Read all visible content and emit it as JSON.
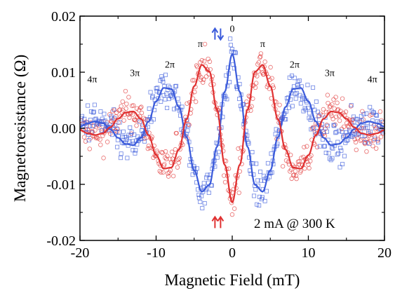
{
  "chart_data": {
    "type": "scatter",
    "xlabel": "Magnetic Field (mT)",
    "ylabel": "Magnetoresistance  (Ω)",
    "xlim": [
      -20,
      20
    ],
    "ylim": [
      -0.02,
      0.02
    ],
    "x_ticks": [
      -20,
      -10,
      0,
      10,
      20
    ],
    "x_tick_labels": [
      "-20",
      "-10",
      "0",
      "10",
      "20"
    ],
    "y_ticks": [
      -0.02,
      -0.01,
      0.0,
      0.01,
      0.02
    ],
    "y_tick_labels": [
      "-0.02",
      "-0.01",
      "0.00",
      "0.01",
      "0.02"
    ],
    "grid": false,
    "condition_label": "2 mA  @ 300 K",
    "series": [
      {
        "marker": "open-square",
        "color": "#3b5bdb",
        "fit_x": [
          -20,
          -19,
          -18,
          -17,
          -16,
          -15,
          -14,
          -13,
          -12,
          -11,
          -10,
          -9,
          -8,
          -7,
          -6,
          -5,
          -4,
          -3,
          -2,
          -1,
          0,
          1,
          2,
          3,
          4,
          5,
          6,
          7,
          8,
          9,
          10,
          11,
          12,
          13,
          14,
          15,
          16,
          17,
          18,
          19,
          20
        ],
        "fit_y": [
          0.0003,
          0.0009,
          0.0012,
          0.0009,
          -0.0002,
          -0.0017,
          -0.0028,
          -0.003,
          -0.0017,
          0.0012,
          0.0048,
          0.0072,
          0.007,
          0.0038,
          -0.0016,
          -0.0075,
          -0.0113,
          -0.0101,
          -0.0033,
          0.0065,
          0.0132,
          0.0065,
          -0.0033,
          -0.0101,
          -0.0113,
          -0.0075,
          -0.0016,
          0.0038,
          0.007,
          0.0072,
          0.0048,
          0.0012,
          -0.0017,
          -0.003,
          -0.0028,
          -0.0017,
          -0.0002,
          0.0009,
          0.0012,
          0.0009,
          0.0003
        ]
      },
      {
        "marker": "open-circle",
        "color": "#e03131",
        "fit_x": [
          -20,
          -19,
          -18,
          -17,
          -16,
          -15,
          -14,
          -13,
          -12,
          -11,
          -10,
          -9,
          -8,
          -7,
          -6,
          -5,
          -4,
          -3,
          -2,
          -1,
          0,
          1,
          2,
          3,
          4,
          5,
          6,
          7,
          8,
          9,
          10,
          11,
          12,
          13,
          14,
          15,
          16,
          17,
          18,
          19,
          20
        ],
        "fit_y": [
          -0.0003,
          -0.0009,
          -0.0012,
          -0.0009,
          0.0002,
          0.0017,
          0.0028,
          0.003,
          0.0017,
          -0.0012,
          -0.0048,
          -0.0072,
          -0.007,
          -0.0038,
          0.0016,
          0.0075,
          0.0113,
          0.0101,
          0.0033,
          -0.0065,
          -0.0132,
          -0.0065,
          0.0033,
          0.0101,
          0.0113,
          0.0075,
          0.0016,
          -0.0038,
          -0.007,
          -0.0072,
          -0.0048,
          -0.0012,
          0.0017,
          0.003,
          0.0028,
          0.0017,
          0.0002,
          -0.0009,
          -0.0012,
          -0.0009,
          -0.0003
        ]
      }
    ],
    "annotations": [
      {
        "text": "0",
        "x": 0,
        "y": 0.0172
      },
      {
        "text": "π",
        "x": -4.2,
        "y": 0.0145
      },
      {
        "text": "π",
        "x": 4.0,
        "y": 0.0145
      },
      {
        "text": "2π",
        "x": -8.2,
        "y": 0.0108
      },
      {
        "text": "2π",
        "x": 8.2,
        "y": 0.0108
      },
      {
        "text": "3π",
        "x": -12.8,
        "y": 0.0093
      },
      {
        "text": "3π",
        "x": 12.8,
        "y": 0.0093
      },
      {
        "text": "4π",
        "x": -18.4,
        "y": 0.0082
      },
      {
        "text": "4π",
        "x": 18.4,
        "y": 0.0082
      }
    ],
    "arrows": [
      {
        "label": "antiparallel",
        "arrows": [
          "up",
          "down"
        ],
        "colors": [
          "#3b5bdb",
          "#3b5bdb"
        ],
        "x": -1.9,
        "y": 0.0168
      },
      {
        "label": "parallel",
        "arrows": [
          "up",
          "up"
        ],
        "colors": [
          "#e03131",
          "#e03131"
        ],
        "x": -1.9,
        "y": -0.0168
      }
    ]
  }
}
